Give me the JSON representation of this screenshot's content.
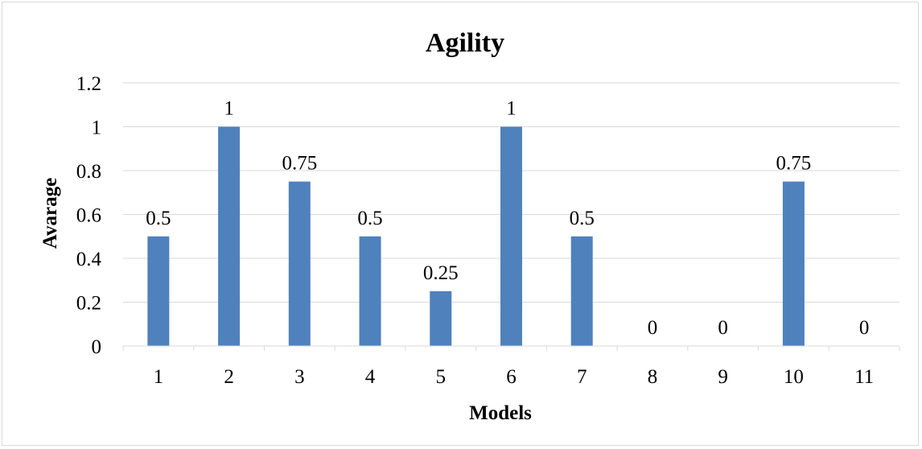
{
  "chart_data": {
    "type": "bar",
    "title": "Agility",
    "xlabel": "Models",
    "ylabel": "Avarage",
    "categories": [
      "1",
      "2",
      "3",
      "4",
      "5",
      "6",
      "7",
      "8",
      "9",
      "10",
      "11"
    ],
    "values": [
      0.5,
      1,
      0.75,
      0.5,
      0.25,
      1,
      0.5,
      0,
      0,
      0.75,
      0
    ],
    "data_labels": [
      "0.5",
      "1",
      "0.75",
      "0.5",
      "0.25",
      "1",
      "0.5",
      "0",
      "0",
      "0.75",
      "0"
    ],
    "ylim": [
      0,
      1.2
    ],
    "yticks": [
      "0",
      "0.2",
      "0.4",
      "0.6",
      "0.8",
      "1",
      "1.2"
    ],
    "grid": true,
    "legend": "none",
    "bar_color": "#4f81bd",
    "grid_color": "#d9d9d9"
  }
}
